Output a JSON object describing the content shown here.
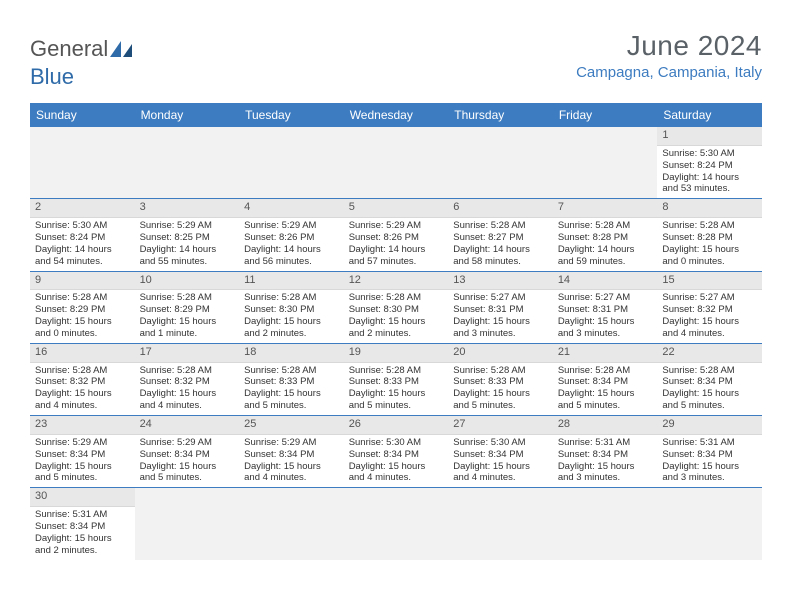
{
  "logo": {
    "general": "General",
    "blue": "Blue"
  },
  "title": "June 2024",
  "location": "Campagna, Campania, Italy",
  "colors": {
    "header_bg": "#3d7cc0",
    "header_text": "#ffffff",
    "daynum_bg": "#e8e8e8",
    "row_border": "#3d7cc0",
    "location_color": "#3d7cc0",
    "title_color": "#5a6268",
    "logo_accent": "#2f6ba8"
  },
  "weekdays": [
    "Sunday",
    "Monday",
    "Tuesday",
    "Wednesday",
    "Thursday",
    "Friday",
    "Saturday"
  ],
  "days": {
    "1": {
      "sunrise": "5:30 AM",
      "sunset": "8:24 PM",
      "daylight": "14 hours and 53 minutes."
    },
    "2": {
      "sunrise": "5:30 AM",
      "sunset": "8:24 PM",
      "daylight": "14 hours and 54 minutes."
    },
    "3": {
      "sunrise": "5:29 AM",
      "sunset": "8:25 PM",
      "daylight": "14 hours and 55 minutes."
    },
    "4": {
      "sunrise": "5:29 AM",
      "sunset": "8:26 PM",
      "daylight": "14 hours and 56 minutes."
    },
    "5": {
      "sunrise": "5:29 AM",
      "sunset": "8:26 PM",
      "daylight": "14 hours and 57 minutes."
    },
    "6": {
      "sunrise": "5:28 AM",
      "sunset": "8:27 PM",
      "daylight": "14 hours and 58 minutes."
    },
    "7": {
      "sunrise": "5:28 AM",
      "sunset": "8:28 PM",
      "daylight": "14 hours and 59 minutes."
    },
    "8": {
      "sunrise": "5:28 AM",
      "sunset": "8:28 PM",
      "daylight": "15 hours and 0 minutes."
    },
    "9": {
      "sunrise": "5:28 AM",
      "sunset": "8:29 PM",
      "daylight": "15 hours and 0 minutes."
    },
    "10": {
      "sunrise": "5:28 AM",
      "sunset": "8:29 PM",
      "daylight": "15 hours and 1 minute."
    },
    "11": {
      "sunrise": "5:28 AM",
      "sunset": "8:30 PM",
      "daylight": "15 hours and 2 minutes."
    },
    "12": {
      "sunrise": "5:28 AM",
      "sunset": "8:30 PM",
      "daylight": "15 hours and 2 minutes."
    },
    "13": {
      "sunrise": "5:27 AM",
      "sunset": "8:31 PM",
      "daylight": "15 hours and 3 minutes."
    },
    "14": {
      "sunrise": "5:27 AM",
      "sunset": "8:31 PM",
      "daylight": "15 hours and 3 minutes."
    },
    "15": {
      "sunrise": "5:27 AM",
      "sunset": "8:32 PM",
      "daylight": "15 hours and 4 minutes."
    },
    "16": {
      "sunrise": "5:28 AM",
      "sunset": "8:32 PM",
      "daylight": "15 hours and 4 minutes."
    },
    "17": {
      "sunrise": "5:28 AM",
      "sunset": "8:32 PM",
      "daylight": "15 hours and 4 minutes."
    },
    "18": {
      "sunrise": "5:28 AM",
      "sunset": "8:33 PM",
      "daylight": "15 hours and 5 minutes."
    },
    "19": {
      "sunrise": "5:28 AM",
      "sunset": "8:33 PM",
      "daylight": "15 hours and 5 minutes."
    },
    "20": {
      "sunrise": "5:28 AM",
      "sunset": "8:33 PM",
      "daylight": "15 hours and 5 minutes."
    },
    "21": {
      "sunrise": "5:28 AM",
      "sunset": "8:34 PM",
      "daylight": "15 hours and 5 minutes."
    },
    "22": {
      "sunrise": "5:28 AM",
      "sunset": "8:34 PM",
      "daylight": "15 hours and 5 minutes."
    },
    "23": {
      "sunrise": "5:29 AM",
      "sunset": "8:34 PM",
      "daylight": "15 hours and 5 minutes."
    },
    "24": {
      "sunrise": "5:29 AM",
      "sunset": "8:34 PM",
      "daylight": "15 hours and 5 minutes."
    },
    "25": {
      "sunrise": "5:29 AM",
      "sunset": "8:34 PM",
      "daylight": "15 hours and 4 minutes."
    },
    "26": {
      "sunrise": "5:30 AM",
      "sunset": "8:34 PM",
      "daylight": "15 hours and 4 minutes."
    },
    "27": {
      "sunrise": "5:30 AM",
      "sunset": "8:34 PM",
      "daylight": "15 hours and 4 minutes."
    },
    "28": {
      "sunrise": "5:31 AM",
      "sunset": "8:34 PM",
      "daylight": "15 hours and 3 minutes."
    },
    "29": {
      "sunrise": "5:31 AM",
      "sunset": "8:34 PM",
      "daylight": "15 hours and 3 minutes."
    },
    "30": {
      "sunrise": "5:31 AM",
      "sunset": "8:34 PM",
      "daylight": "15 hours and 2 minutes."
    }
  },
  "grid": [
    [
      null,
      null,
      null,
      null,
      null,
      null,
      "1"
    ],
    [
      "2",
      "3",
      "4",
      "5",
      "6",
      "7",
      "8"
    ],
    [
      "9",
      "10",
      "11",
      "12",
      "13",
      "14",
      "15"
    ],
    [
      "16",
      "17",
      "18",
      "19",
      "20",
      "21",
      "22"
    ],
    [
      "23",
      "24",
      "25",
      "26",
      "27",
      "28",
      "29"
    ],
    [
      "30",
      null,
      null,
      null,
      null,
      null,
      null
    ]
  ],
  "labels": {
    "sunrise": "Sunrise:",
    "sunset": "Sunset:",
    "daylight": "Daylight:"
  }
}
